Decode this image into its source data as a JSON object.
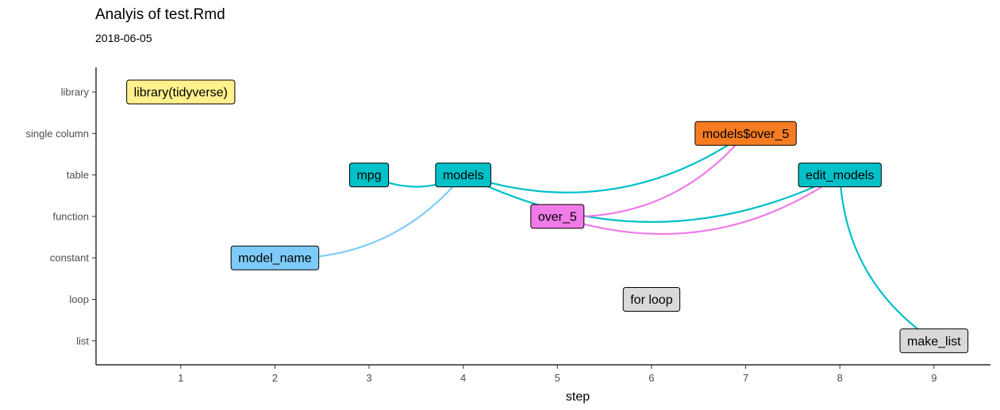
{
  "title": "Analyis of test.Rmd",
  "subtitle": "2018-06-05",
  "chart_data": {
    "type": "network",
    "xlabel": "step",
    "ylabel": "",
    "xlim": [
      0.1,
      9.6
    ],
    "x_ticks": [
      1,
      2,
      3,
      4,
      5,
      6,
      7,
      8,
      9
    ],
    "y_categories": [
      "library",
      "single column",
      "table",
      "function",
      "constant",
      "loop",
      "list"
    ],
    "grid": false,
    "legend": "none",
    "nodes": [
      {
        "id": "library(tidyverse)",
        "label": "library(tidyverse)",
        "x": 1,
        "y": "library",
        "color": "#fff18d"
      },
      {
        "id": "model_name",
        "label": "model_name",
        "x": 2,
        "y": "constant",
        "color": "#7ecbfa"
      },
      {
        "id": "mpg",
        "label": "mpg",
        "x": 3,
        "y": "table",
        "color": "#00c0c8"
      },
      {
        "id": "models",
        "label": "models",
        "x": 4,
        "y": "table",
        "color": "#00c0c8"
      },
      {
        "id": "over_5",
        "label": "over_5",
        "x": 5,
        "y": "function",
        "color": "#f07ae8"
      },
      {
        "id": "for loop",
        "label": "for loop",
        "x": 6,
        "y": "loop",
        "color": "#d9d9d9"
      },
      {
        "id": "models$over_5",
        "label": "models$over_5",
        "x": 7,
        "y": "single column",
        "color": "#f67c22"
      },
      {
        "id": "edit_models",
        "label": "edit_models",
        "x": 8,
        "y": "table",
        "color": "#00c0c8"
      },
      {
        "id": "make_list",
        "label": "make_list",
        "x": 9,
        "y": "list",
        "color": "#d9d9d9"
      }
    ],
    "edges": [
      {
        "from": "mpg",
        "to": "models",
        "color": "#00c0c8"
      },
      {
        "from": "model_name",
        "to": "models",
        "color": "#7ecbfa"
      },
      {
        "from": "models",
        "to": "models$over_5",
        "color": "#00c0c8"
      },
      {
        "from": "models",
        "to": "edit_models",
        "color": "#00c0c8"
      },
      {
        "from": "over_5",
        "to": "models$over_5",
        "color": "#f07ae8"
      },
      {
        "from": "over_5",
        "to": "edit_models",
        "color": "#f07ae8"
      },
      {
        "from": "edit_models",
        "to": "make_list",
        "color": "#00c0c8"
      }
    ]
  }
}
